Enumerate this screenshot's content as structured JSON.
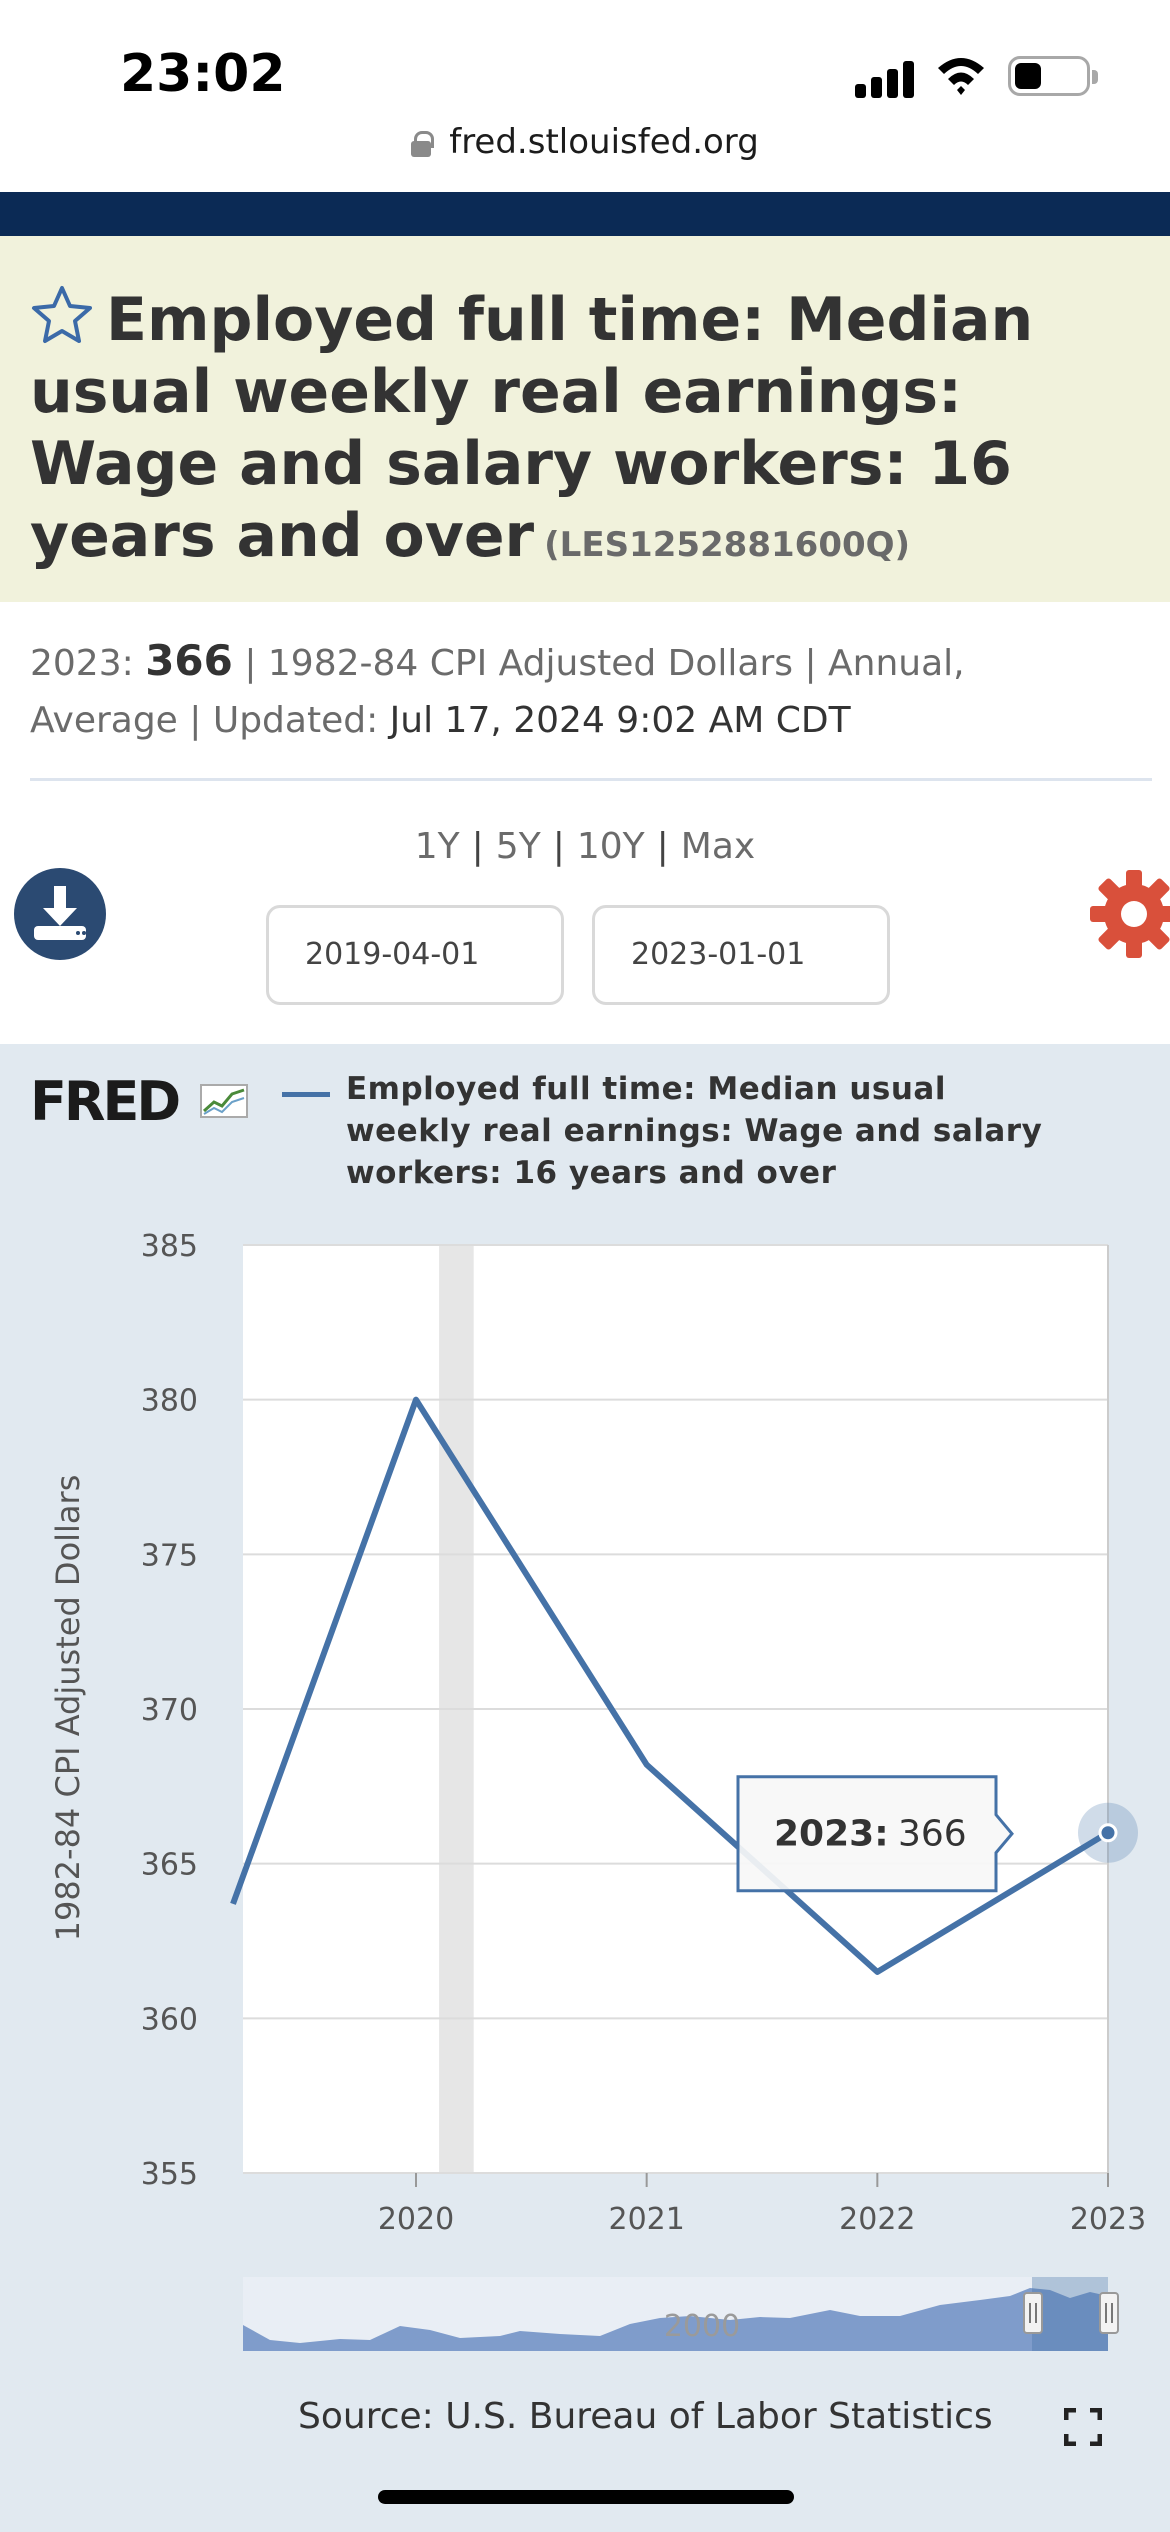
{
  "status_bar": {
    "time": "23:02"
  },
  "browser": {
    "url": "fred.stlouisfed.org"
  },
  "series": {
    "title": "Employed full time: Median usual weekly real earnings: Wage and salary workers: 16 years and over",
    "id": "(LES1252881600Q)",
    "latest_label": "2023:",
    "latest_value": "366",
    "units": "| 1982-84 CPI Adjusted Dollars | Annual,",
    "frequency": "Average | Updated:",
    "updated": "Jul 17, 2024 9:02 AM CDT"
  },
  "range": {
    "options": [
      "1Y",
      "5Y",
      "10Y",
      "Max"
    ],
    "start_date": "2019-04-01",
    "end_date": "2023-01-01"
  },
  "chart": {
    "logo": "FRED",
    "legend": "Employed full time: Median usual weekly real earnings: Wage and salary workers: 16 years and over",
    "tooltip_label": "2023:",
    "tooltip_value": "366",
    "navigator_label": "2000",
    "source": "Source: U.S. Bureau of Labor Statistics"
  },
  "chart_data": {
    "type": "line",
    "title": "Employed full time: Median usual weekly real earnings: Wage and salary workers: 16 years and over",
    "xlabel": "",
    "ylabel": "1982-84 CPI Adjusted Dollars",
    "x": [
      2019.25,
      2020,
      2021,
      2022,
      2023
    ],
    "series": [
      {
        "name": "LES1252881600Q",
        "values": [
          363.7,
          380,
          368.2,
          361.5,
          366
        ]
      }
    ],
    "xlim": [
      2019.25,
      2023
    ],
    "ylim": [
      355,
      385
    ],
    "x_ticks": [
      "2020",
      "2021",
      "2022",
      "2023"
    ],
    "y_ticks": [
      "355",
      "360",
      "365",
      "370",
      "375",
      "380",
      "385"
    ],
    "recession_band": [
      2020.1,
      2020.25
    ],
    "grid": true,
    "legend_position": "top"
  },
  "colors": {
    "line": "#4572a7",
    "header_bg": "#f1f2dc",
    "nav_strip": "#0b2a55",
    "panel_bg": "#e1e9f0",
    "gear": "#d9503b"
  }
}
